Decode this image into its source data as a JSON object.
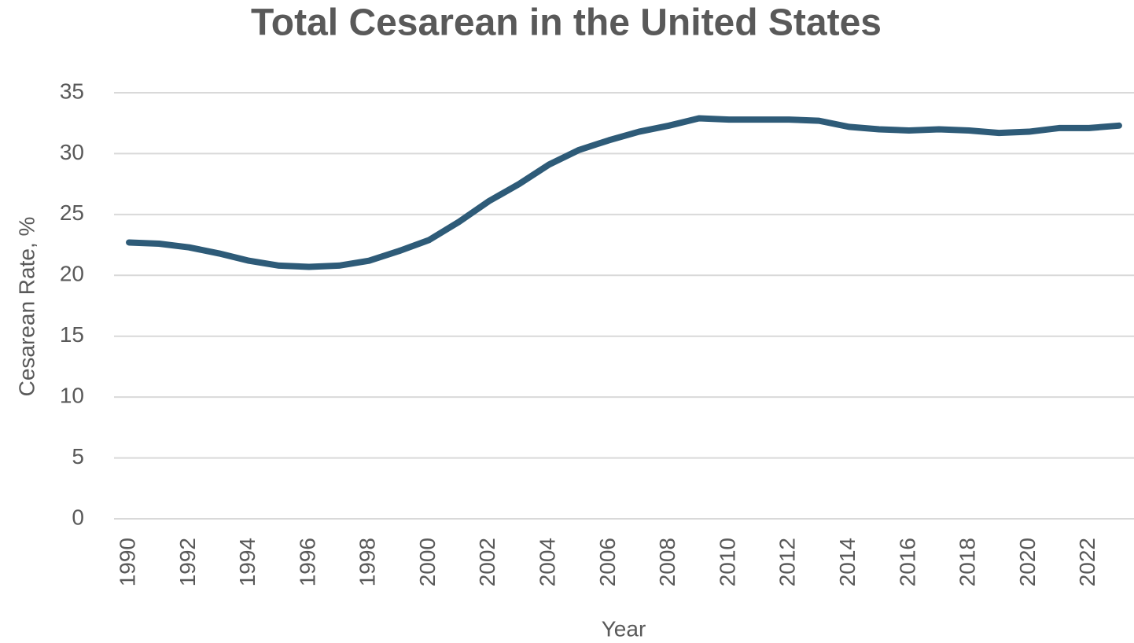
{
  "chart_data": {
    "type": "line",
    "title": "Total Cesarean in the United States",
    "x_label": "Year",
    "y_label": "Cesarean Rate, %",
    "categories": [
      "1990",
      null,
      "1992",
      null,
      "1994",
      null,
      "1996",
      null,
      "1998",
      null,
      "2000",
      null,
      "2002",
      null,
      "2004",
      null,
      "2006",
      null,
      "2008",
      null,
      "2010",
      null,
      "2012",
      null,
      "2014",
      null,
      "2016",
      null,
      "2018",
      null,
      "2020",
      null,
      "2022",
      null
    ],
    "series": [
      {
        "name": "Cesarean Rate",
        "color": "#2e5b78",
        "values": [
          22.7,
          22.6,
          22.3,
          21.8,
          21.2,
          20.8,
          20.7,
          20.8,
          21.2,
          22.0,
          22.9,
          24.4,
          26.1,
          27.5,
          29.1,
          30.3,
          31.1,
          31.8,
          32.3,
          32.9,
          32.8,
          32.8,
          32.8,
          32.7,
          32.2,
          32.0,
          31.9,
          32.0,
          31.9,
          31.7,
          31.8,
          32.1,
          32.1,
          32.3
        ]
      }
    ],
    "ylim": [
      0,
      35
    ],
    "yticks": [
      0,
      5,
      10,
      15,
      20,
      25,
      30,
      35
    ],
    "grid": true
  }
}
